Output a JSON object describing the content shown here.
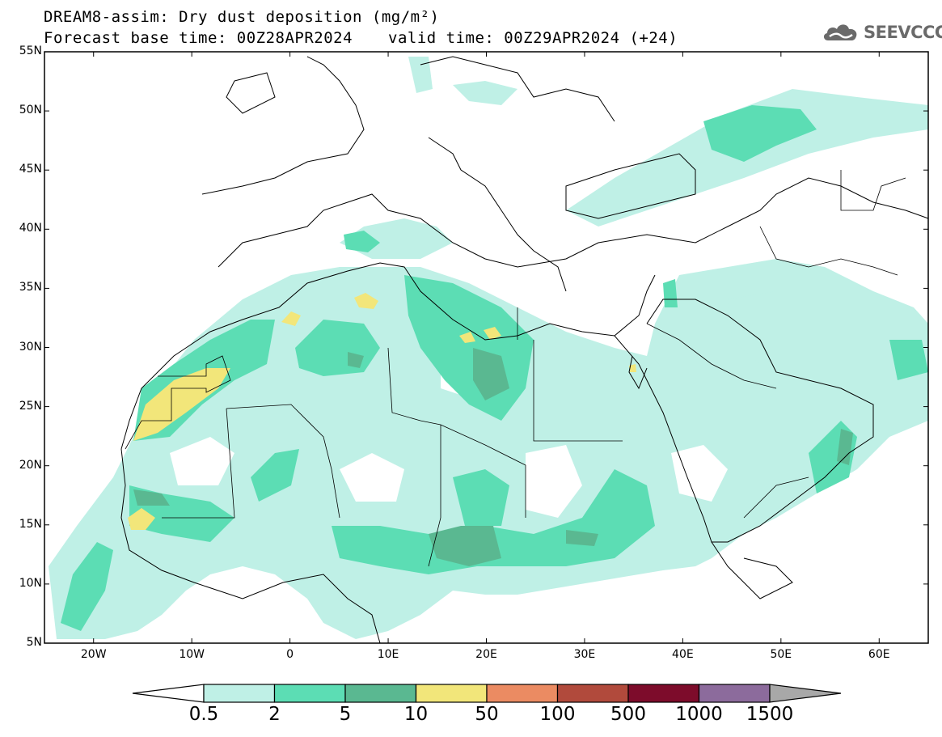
{
  "header": {
    "title": "DREAM8-assim: Dry dust deposition (mg/m²)",
    "base_time": "Forecast base time: 00Z28APR2024",
    "valid_time": "valid time: 00Z29APR2024 (+24)"
  },
  "logo": {
    "text": "SEEVCCC",
    "icon": "cloud-icon"
  },
  "map": {
    "lon_range": [
      -25,
      65
    ],
    "lat_range": [
      5,
      55
    ],
    "lat_ticks": [
      {
        "v": 55,
        "label": "55N"
      },
      {
        "v": 50,
        "label": "50N"
      },
      {
        "v": 45,
        "label": "45N"
      },
      {
        "v": 40,
        "label": "40N"
      },
      {
        "v": 35,
        "label": "35N"
      },
      {
        "v": 30,
        "label": "30N"
      },
      {
        "v": 25,
        "label": "25N"
      },
      {
        "v": 20,
        "label": "20N"
      },
      {
        "v": 15,
        "label": "15N"
      },
      {
        "v": 10,
        "label": "10N"
      },
      {
        "v": 5,
        "label": "5N"
      }
    ],
    "lon_ticks": [
      {
        "v": -20,
        "label": "20W"
      },
      {
        "v": -10,
        "label": "10W"
      },
      {
        "v": 0,
        "label": "0"
      },
      {
        "v": 10,
        "label": "10E"
      },
      {
        "v": 20,
        "label": "20E"
      },
      {
        "v": 30,
        "label": "30E"
      },
      {
        "v": 40,
        "label": "40E"
      },
      {
        "v": 50,
        "label": "50E"
      },
      {
        "v": 60,
        "label": "60E"
      }
    ]
  },
  "colorbar": {
    "labels": [
      "0.5",
      "2",
      "5",
      "10",
      "50",
      "100",
      "500",
      "1000",
      "1500"
    ],
    "colors": [
      "#bff0e6",
      "#5cddb4",
      "#5ab891",
      "#f2e67a",
      "#eb8b62",
      "#b14a3c",
      "#7d0c2b",
      "#8c6b9c"
    ],
    "under_color": "#ffffff",
    "over_color": "#a8a8a8"
  },
  "colors": {
    "c1": "#bff0e6",
    "c2": "#5cddb4",
    "c3": "#5ab891",
    "c4": "#f2e67a"
  }
}
